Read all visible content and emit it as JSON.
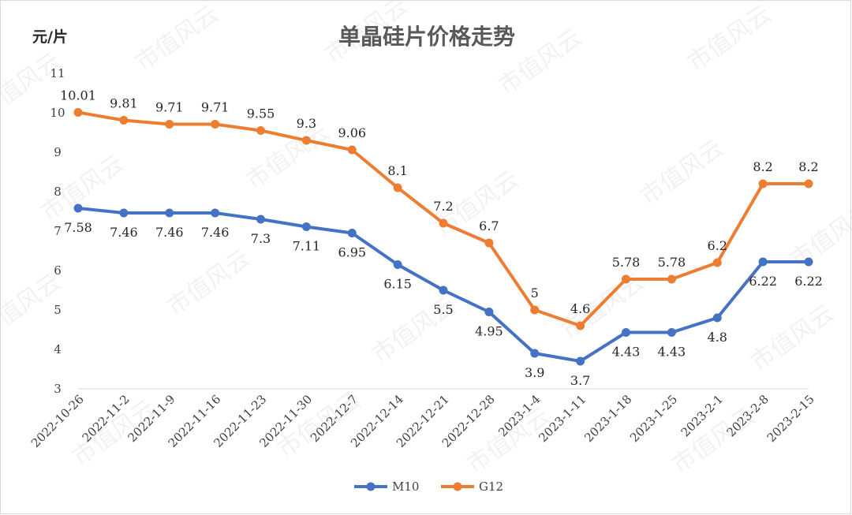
{
  "chart_data": {
    "type": "line",
    "title": "单晶硅片价格走势",
    "ylabel": "元/片",
    "xlabel": "",
    "ylim": [
      3,
      11
    ],
    "yticks": [
      3,
      4,
      5,
      6,
      7,
      8,
      9,
      10,
      11
    ],
    "grid": false,
    "legend_position": "bottom",
    "categories": [
      "2022-10-26",
      "2022-11-2",
      "2022-11-9",
      "2022-11-16",
      "2022-11-23",
      "2022-11-30",
      "2022-12-7",
      "2022-12-14",
      "2022-12-21",
      "2022-12-28",
      "2023-1-4",
      "2023-1-11",
      "2023-1-18",
      "2023-1-25",
      "2023-2-1",
      "2023-2-8",
      "2023-2-15"
    ],
    "series": [
      {
        "name": "M10",
        "color": "#4472C4",
        "label_position": "below",
        "values": [
          7.58,
          7.46,
          7.46,
          7.46,
          7.3,
          7.11,
          6.95,
          6.15,
          5.5,
          4.95,
          3.9,
          3.7,
          4.43,
          4.43,
          4.8,
          6.22,
          6.22
        ],
        "labels": [
          "7.58",
          "7.46",
          "7.46",
          "7.46",
          "7.3",
          "7.11",
          "6.95",
          "6.15",
          "5.5",
          "4.95",
          "3.9",
          "3.7",
          "4.43",
          "4.43",
          "4.8",
          "6.22",
          "6.22"
        ]
      },
      {
        "name": "G12",
        "color": "#ED7D31",
        "label_position": "above",
        "values": [
          10.01,
          9.81,
          9.71,
          9.71,
          9.55,
          9.3,
          9.06,
          8.1,
          7.2,
          6.7,
          5,
          4.6,
          5.78,
          5.78,
          6.2,
          8.2,
          8.2
        ],
        "labels": [
          "10.01",
          "9.81",
          "9.71",
          "9.71",
          "9.55",
          "9.3",
          "9.06",
          "8.1",
          "7.2",
          "6.7",
          "5",
          "4.6",
          "5.78",
          "5.78",
          "6.2",
          "8.2",
          "8.2"
        ]
      }
    ]
  },
  "watermark": {
    "text": "市值风云"
  }
}
